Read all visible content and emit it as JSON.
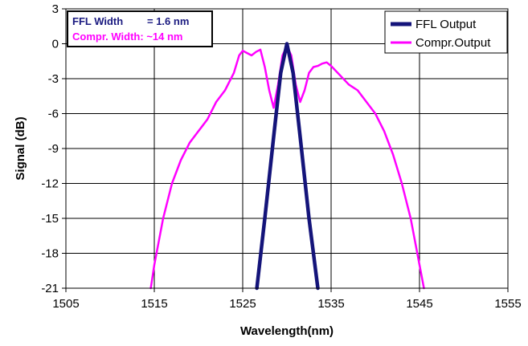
{
  "chart_data": {
    "type": "line",
    "title": "",
    "xlabel": "Wavelength(nm)",
    "ylabel": "Signal (dB)",
    "xlim": [
      1505,
      1555
    ],
    "ylim": [
      -21,
      3
    ],
    "x_ticks": [
      "1505",
      "1515",
      "1525",
      "1535",
      "1545",
      "1555"
    ],
    "y_ticks": [
      "3",
      "0",
      "-3",
      "-6",
      "-9",
      "-12",
      "-15",
      "-18",
      "-21"
    ],
    "grid": true,
    "legend_position": "top-right",
    "annotations": [
      {
        "label": "FFL Width",
        "value": "= 1.6 nm",
        "color": "#1a1a80"
      },
      {
        "label": "Compr. Width: ~14 nm",
        "value": "",
        "color": "#ff00ff"
      }
    ],
    "series": [
      {
        "name": "FFL Output",
        "color": "#14147a",
        "x": [
          1526.6,
          1527.5,
          1528.5,
          1529.3,
          1530.0,
          1530.7,
          1531.5,
          1532.5,
          1533.5
        ],
        "y": [
          -21,
          -15,
          -8,
          -2.5,
          0,
          -2.5,
          -8,
          -15,
          -21
        ]
      },
      {
        "name": "Compr.Output",
        "color": "#ff00ff",
        "x": [
          1514.6,
          1515.0,
          1516.0,
          1517.0,
          1518.0,
          1519.0,
          1520.0,
          1521.0,
          1522.0,
          1523.0,
          1524.0,
          1524.6,
          1525.0,
          1525.5,
          1526.0,
          1526.5,
          1527.0,
          1527.5,
          1528.0,
          1528.5,
          1529.0,
          1529.5,
          1530.0,
          1530.5,
          1531.0,
          1531.5,
          1532.0,
          1532.5,
          1533.0,
          1533.5,
          1534.0,
          1534.5,
          1535.0,
          1536.0,
          1537.0,
          1538.0,
          1539.0,
          1540.0,
          1541.0,
          1542.0,
          1543.0,
          1544.0,
          1545.0,
          1545.5
        ],
        "y": [
          -21,
          -19,
          -15,
          -12,
          -10,
          -8.5,
          -7.5,
          -6.5,
          -5,
          -4,
          -2.5,
          -1,
          -0.6,
          -0.8,
          -1,
          -0.7,
          -0.5,
          -2,
          -4,
          -5.5,
          -3.5,
          -1,
          -0.2,
          -1,
          -3.5,
          -5,
          -4,
          -2.5,
          -2,
          -1.9,
          -1.7,
          -1.6,
          -1.9,
          -2.7,
          -3.5,
          -4,
          -5,
          -6,
          -7.5,
          -9.5,
          -12,
          -15,
          -19,
          -21
        ]
      }
    ]
  }
}
